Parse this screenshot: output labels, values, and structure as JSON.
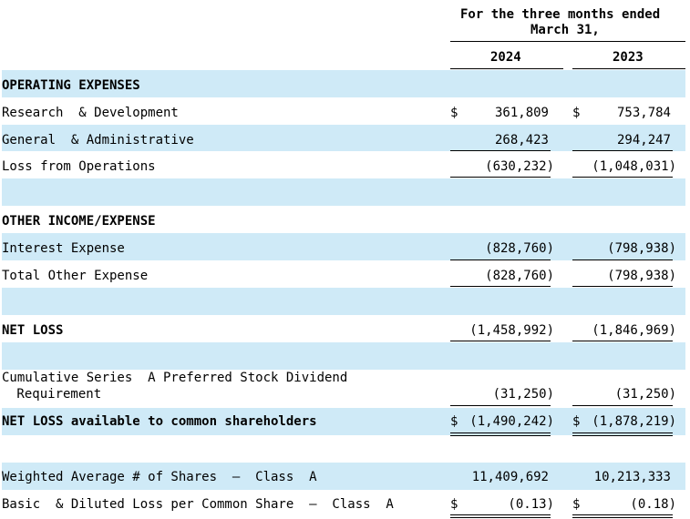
{
  "header": {
    "period_line1": "For the three months ended",
    "period_line2": "March 31,",
    "col1": "2024",
    "col2": "2023"
  },
  "rows": {
    "opex_heading": "OPERATING EXPENSES",
    "rnd": {
      "label": "Research  & Development",
      "cur1": "$",
      "v1": "361,809",
      "cur2": "$",
      "v2": "753,784"
    },
    "gna": {
      "label": "General  & Administrative",
      "v1": "268,423",
      "v2": "294,247"
    },
    "loss_ops": {
      "label": "Loss from Operations",
      "v1": "(630,232)",
      "v2": "(1,048,031)"
    },
    "other_heading": "OTHER INCOME/EXPENSE",
    "interest": {
      "label": "Interest Expense",
      "v1": "(828,760)",
      "v2": "(798,938)"
    },
    "total_other": {
      "label": "Total Other Expense",
      "v1": "(828,760)",
      "v2": "(798,938)"
    },
    "net_loss": {
      "label": "NET LOSS",
      "v1": "(1,458,992)",
      "v2": "(1,846,969)"
    },
    "dividend": {
      "label1": "Cumulative Series  A Preferred Stock Dividend",
      "label2": " Requirement",
      "v1": "(31,250)",
      "v2": "(31,250)"
    },
    "net_loss_common": {
      "label": "NET LOSS available to common shareholders",
      "cur1": "$",
      "v1": "(1,490,242)",
      "cur2": "$",
      "v2": "(1,878,219)"
    },
    "wavg_shares": {
      "label": "Weighted Average # of Shares  –  Class  A",
      "v1": "11,409,692",
      "v2": "10,213,333"
    },
    "eps": {
      "label": "Basic  & Diluted Loss per Common Share  –  Class  A",
      "cur1": "$",
      "v1": "(0.13)",
      "cur2": "$",
      "v2": "(0.18)"
    }
  },
  "colors": {
    "band": "#cfeaf7",
    "text": "#000000"
  }
}
